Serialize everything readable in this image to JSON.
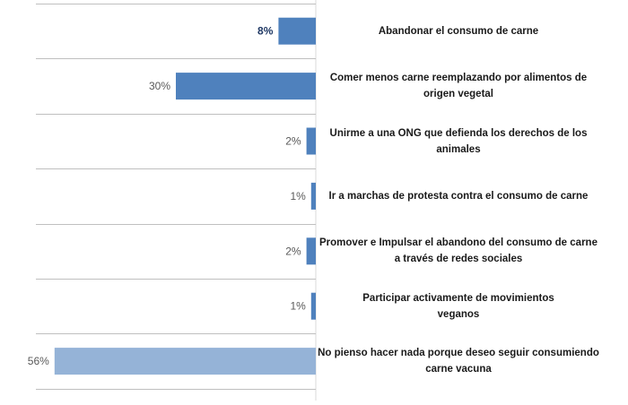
{
  "chart_data": {
    "type": "bar",
    "orientation": "horizontal",
    "categories": [
      "Abandonar el consumo de carne",
      "Comer menos carne reemplazando por alimentos de origen vegetal",
      "Unirme a una ONG que defienda los derechos de los animales",
      "Ir a marchas de protesta contra el consumo de carne",
      "Promover e Impulsar el abandono del consumo de carne a través de redes sociales",
      "Participar activamente de movimientos veganos",
      "No pienso hacer nada porque deseo seguir consumiendo carne vacuna"
    ],
    "category_lines": [
      [
        "Abandonar el consumo de carne"
      ],
      [
        "Comer menos carne reemplazando por alimentos de",
        "origen vegetal"
      ],
      [
        "Unirme a una ONG que defienda los derechos de los",
        "animales"
      ],
      [
        "Ir a marchas de protesta contra el consumo de carne"
      ],
      [
        "Promover e Impulsar el abandono del consumo de carne",
        "a través de redes sociales"
      ],
      [
        "Participar activamente de movimientos",
        "veganos"
      ],
      [
        "No pienso hacer nada porque deseo seguir consumiendo",
        "carne vacuna"
      ]
    ],
    "values": [
      8,
      30,
      2,
      1,
      2,
      1,
      56
    ],
    "data_labels": [
      "8%",
      "30%",
      "2%",
      "1%",
      "2%",
      "1%",
      "56%"
    ],
    "unit": "%",
    "xlim": [
      0,
      60
    ],
    "grid": "horizontal",
    "bar_colors": [
      "#4f81bd",
      "#4f81bd",
      "#4f81bd",
      "#4f81bd",
      "#4f81bd",
      "#4f81bd",
      "#95b3d7"
    ],
    "label_color_on_dark": "#1f3864",
    "label_color_default": "#595959",
    "gridline_color": "#bfbfbf"
  }
}
